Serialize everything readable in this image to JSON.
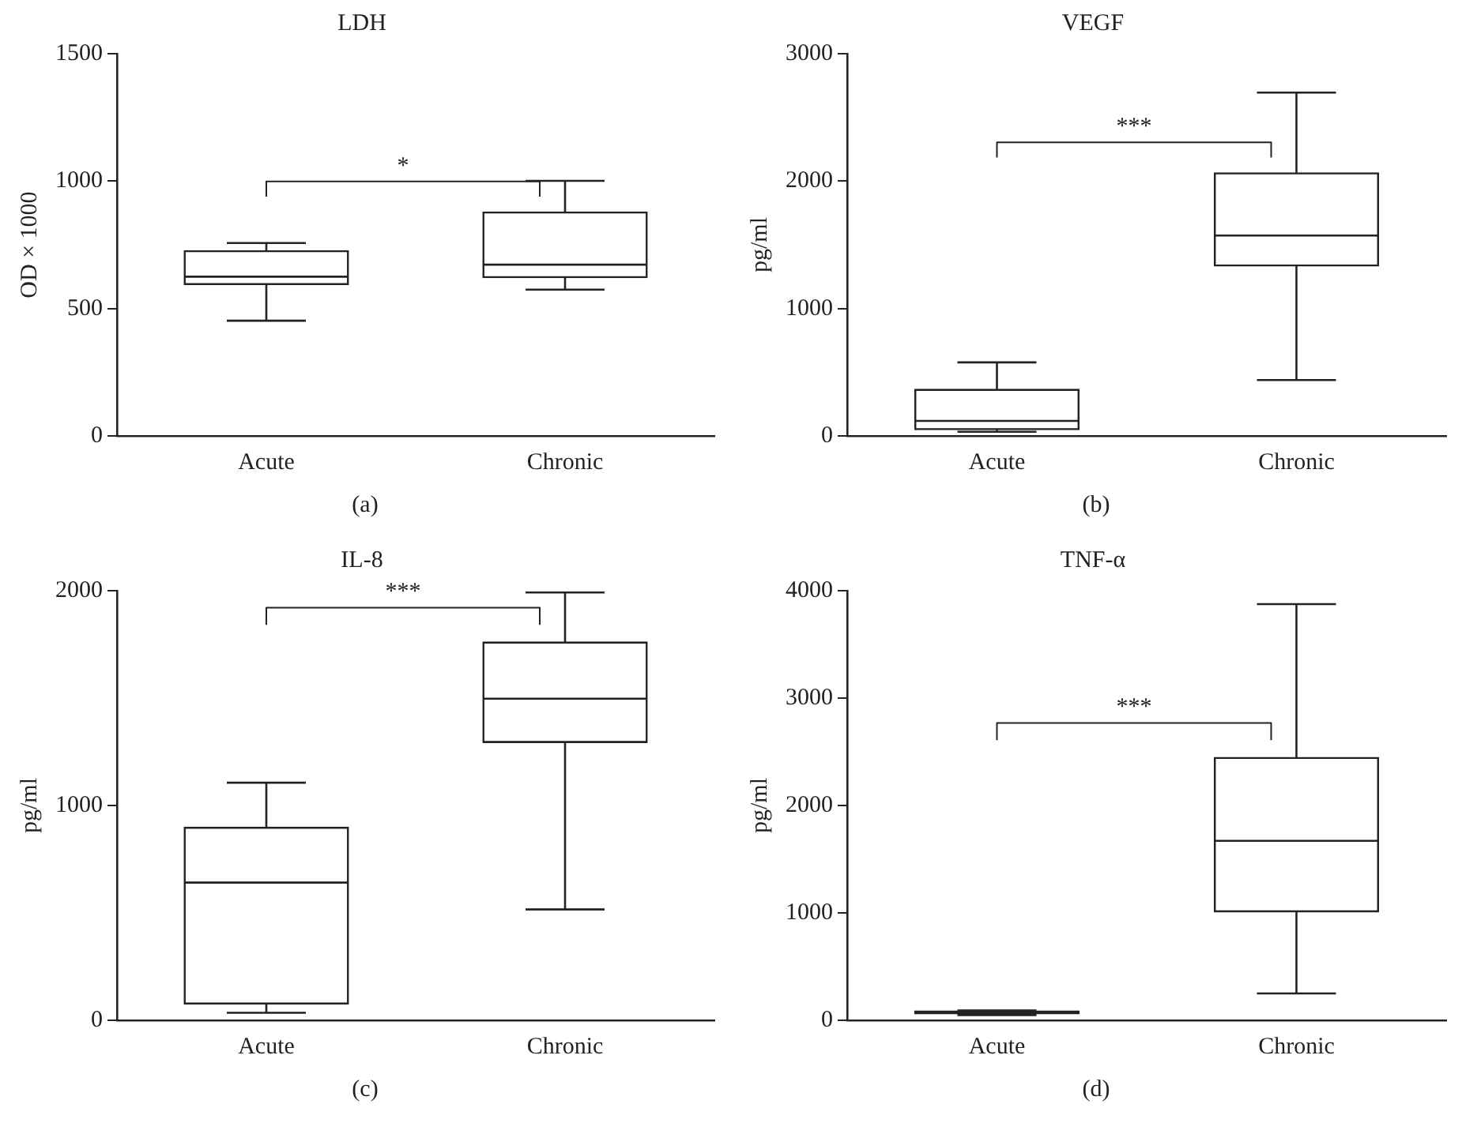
{
  "chart_data": [
    {
      "type": "box",
      "title": "LDH",
      "ylabel": "OD × 1000",
      "categories": [
        "Acute",
        "Chronic"
      ],
      "ylim": [
        0,
        1500
      ],
      "yticks": [
        0,
        500,
        1000,
        1500
      ],
      "grid": false,
      "legend": false,
      "annotations": [
        "*",
        "(a)"
      ],
      "boxes": [
        {
          "low": 452,
          "q1": 594,
          "median": 625,
          "q3": 727,
          "high": 757
        },
        {
          "low": 574,
          "q1": 621,
          "median": 672,
          "q3": 879,
          "high": 1001
        }
      ]
    },
    {
      "type": "box",
      "title": "VEGF",
      "ylabel": "pg/ml",
      "categories": [
        "Acute",
        "Chronic"
      ],
      "ylim": [
        0,
        3000
      ],
      "yticks": [
        0,
        1000,
        2000,
        3000
      ],
      "grid": false,
      "legend": false,
      "annotations": [
        "***",
        "(b)"
      ],
      "boxes": [
        {
          "low": 33,
          "q1": 49,
          "median": 118,
          "q3": 366,
          "high": 577
        },
        {
          "low": 439,
          "q1": 1333,
          "median": 1573,
          "q3": 2065,
          "high": 2695
        }
      ]
    },
    {
      "type": "box",
      "title": "IL-8",
      "ylabel": "pg/ml",
      "categories": [
        "Acute",
        "Chronic"
      ],
      "ylim": [
        0,
        2000
      ],
      "yticks": [
        0,
        1000,
        2000
      ],
      "grid": false,
      "legend": false,
      "annotations": [
        "***",
        "(c)"
      ],
      "boxes": [
        {
          "low": 35,
          "q1": 76,
          "median": 641,
          "q3": 899,
          "high": 1106
        },
        {
          "low": 516,
          "q1": 1293,
          "median": 1497,
          "q3": 1761,
          "high": 1992
        }
      ]
    },
    {
      "type": "box",
      "title": "TNF-α",
      "ylabel": "pg/ml",
      "categories": [
        "Acute",
        "Chronic"
      ],
      "ylim": [
        0,
        4000
      ],
      "yticks": [
        0,
        1000,
        2000,
        3000,
        4000
      ],
      "grid": false,
      "legend": false,
      "annotations": [
        "***",
        "(d)"
      ],
      "boxes": [
        {
          "low": 49,
          "q1": 60,
          "median": 71,
          "q3": 87,
          "high": 92
        },
        {
          "low": 250,
          "q1": 1009,
          "median": 1671,
          "q3": 2448,
          "high": 3875
        }
      ]
    }
  ]
}
